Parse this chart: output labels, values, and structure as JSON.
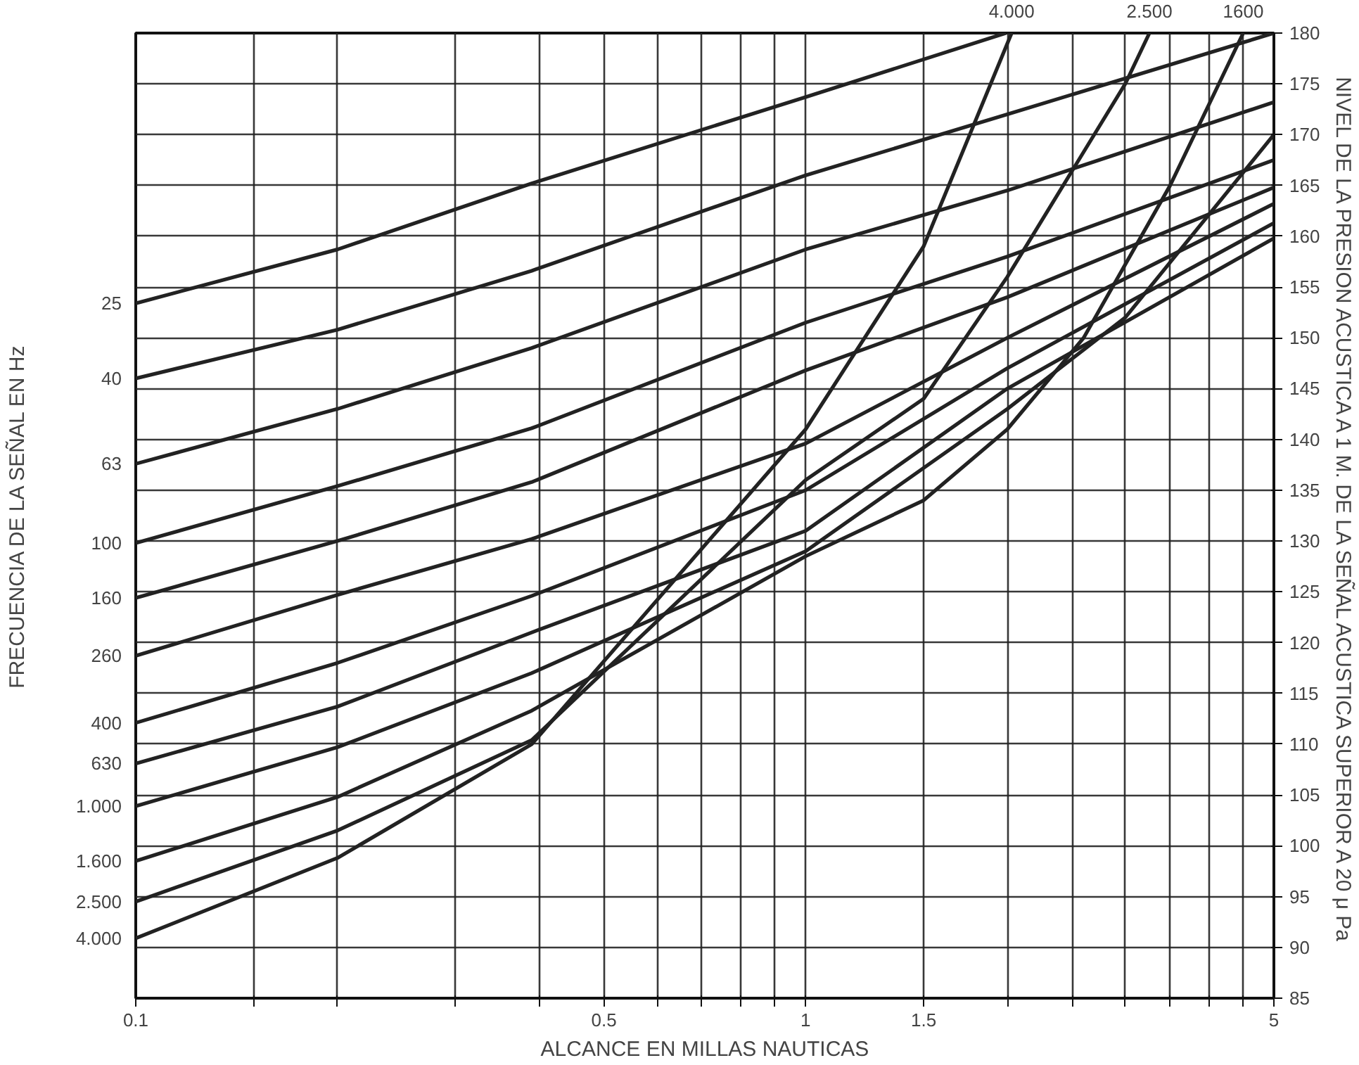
{
  "chart_data": {
    "type": "line",
    "xlabel": "ALCANCE EN MILLAS NAUTICAS",
    "ylabel": "NIVEL DE LA PRESION ACUSTICA A 1 M. DE LA SEÑAL ACUSTICA SUPERIOR A 20 μ Pa",
    "log": "x",
    "xlim": [
      0.1,
      5
    ],
    "ylim": [
      85,
      180
    ],
    "xticks": [
      0.1,
      {
        "value": 0.15,
        "label": null
      },
      {
        "value": 0.2,
        "label": null
      },
      {
        "value": 0.3,
        "label": null
      },
      {
        "value": 0.4,
        "label": null
      },
      0.5,
      {
        "value": 0.6,
        "label": null
      },
      {
        "value": 0.7,
        "label": null
      },
      {
        "value": 0.8,
        "label": null
      },
      {
        "value": 0.9,
        "label": null
      },
      1,
      1.5,
      {
        "value": 2,
        "label": null
      },
      {
        "value": 2.5,
        "label": null
      },
      {
        "value": 3,
        "label": null
      },
      {
        "value": 3.5,
        "label": null
      },
      {
        "value": 4,
        "label": null
      },
      {
        "value": 4.5,
        "label": null
      },
      5
    ],
    "yticks": [
      85,
      90,
      95,
      100,
      105,
      110,
      115,
      120,
      125,
      130,
      135,
      140,
      145,
      150,
      155,
      160,
      165,
      170,
      175,
      180
    ],
    "grid": true,
    "line_style": "solid",
    "annotations": [
      "FRECUENCIA DE LA SEÑAL EN Hz",
      {
        "text": "4.000",
        "x": 2.03,
        "y": 180
      },
      {
        "text": "2.500",
        "x": 3.26,
        "y": 180
      },
      {
        "text": "1600",
        "x": 4.5,
        "y": 180
      }
    ],
    "series": [
      {
        "name": "25",
        "color": "#222222",
        "x": [
          0.1,
          0.2,
          0.39,
          1,
          1.99
        ],
        "values": [
          153.4,
          158.7,
          165.2,
          173.7,
          180
        ]
      },
      {
        "name": "40",
        "color": "#222222",
        "x": [
          0.1,
          0.2,
          0.39,
          1,
          2,
          5
        ],
        "values": [
          146.0,
          150.8,
          156.6,
          166,
          172,
          180
        ]
      },
      {
        "name": "63",
        "color": "#222222",
        "x": [
          0.1,
          0.2,
          0.39,
          1,
          2,
          5
        ],
        "values": [
          137.6,
          143.0,
          149.0,
          158.7,
          164.5,
          173.2
        ]
      },
      {
        "name": "100",
        "color": "#222222",
        "x": [
          0.1,
          0.2,
          0.39,
          1,
          2,
          5
        ],
        "values": [
          129.8,
          135.4,
          141.1,
          151.5,
          158,
          167.5
        ]
      },
      {
        "name": "160",
        "color": "#222222",
        "x": [
          0.1,
          0.2,
          0.39,
          1,
          2,
          5
        ],
        "values": [
          124.4,
          130.0,
          135.8,
          146.8,
          154,
          164.8
        ]
      },
      {
        "name": "260",
        "color": "#222222",
        "x": [
          0.1,
          0.2,
          0.39,
          1,
          2,
          5
        ],
        "values": [
          118.7,
          124.7,
          130.2,
          139.6,
          150,
          163.2
        ]
      },
      {
        "name": "400",
        "color": "#222222",
        "x": [
          0.1,
          0.2,
          0.39,
          1,
          2,
          5
        ],
        "values": [
          112.1,
          118.0,
          124.6,
          135,
          147,
          161.3
        ]
      },
      {
        "name": "630",
        "color": "#222222",
        "x": [
          0.1,
          0.2,
          0.39,
          1,
          2,
          5
        ],
        "values": [
          108.1,
          113.7,
          121.0,
          131,
          145,
          159.8
        ]
      },
      {
        "name": "1.000",
        "color": "#222222",
        "x": [
          0.1,
          0.2,
          0.39,
          1,
          2,
          3,
          5
        ],
        "values": [
          103.9,
          109.7,
          117.0,
          129,
          143,
          152,
          170
        ]
      },
      {
        "name": "1.600",
        "color": "#222222",
        "x": [
          0.1,
          0.2,
          0.39,
          1,
          1.5,
          2,
          2.6,
          3.5,
          4.5
        ],
        "values": [
          98.5,
          104.8,
          113.3,
          128.5,
          134,
          141,
          150,
          165,
          180
        ]
      },
      {
        "name": "2.500",
        "color": "#222222",
        "x": [
          0.1,
          0.2,
          0.39,
          1,
          1.5,
          2,
          3,
          3.26
        ],
        "values": [
          94.5,
          101.5,
          110.4,
          136,
          144,
          156,
          175,
          180
        ]
      },
      {
        "name": "4.000",
        "color": "#222222",
        "x": [
          0.1,
          0.2,
          0.39,
          1,
          1.5,
          2.03
        ],
        "values": [
          90.9,
          98.8,
          110,
          141,
          159,
          180
        ]
      }
    ]
  }
}
